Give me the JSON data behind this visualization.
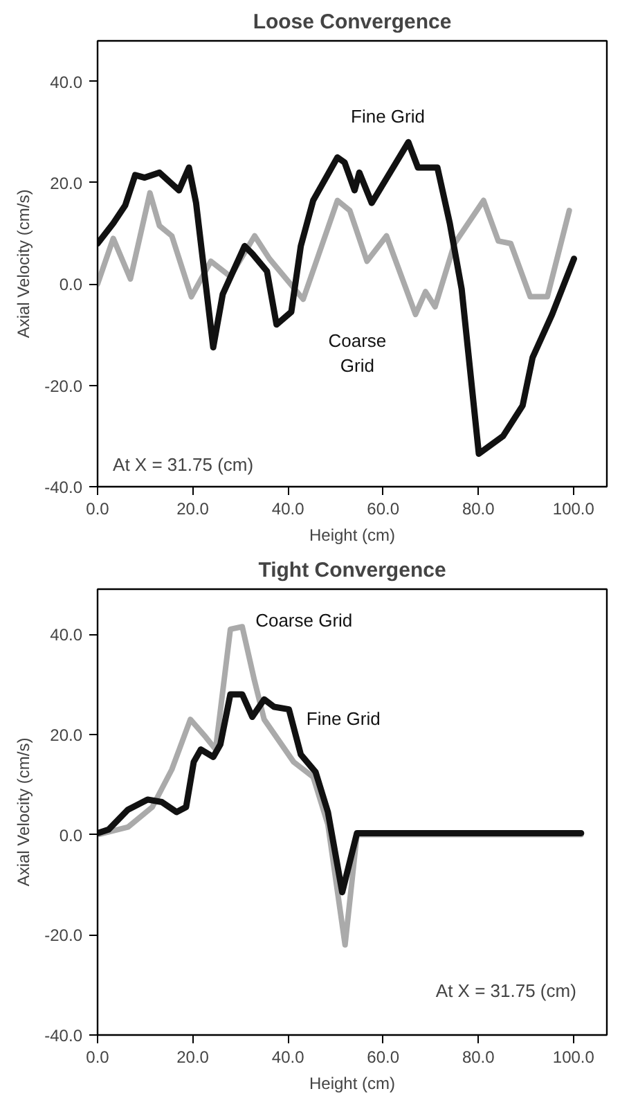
{
  "chart_data": [
    {
      "type": "line",
      "title": "Loose Convergence",
      "xlabel": "Height (cm)",
      "ylabel": "Axial Velocity (cm/s)",
      "annotations": [
        "At X = 31.75 (cm)"
      ],
      "xlim": [
        0,
        107
      ],
      "ylim": [
        -40,
        48
      ],
      "xticks": [
        {
          "value": 0,
          "label": "0.0"
        },
        {
          "value": 20,
          "label": "20.0"
        },
        {
          "value": 40,
          "label": "40.0"
        },
        {
          "value": 60,
          "label": "60.0"
        },
        {
          "value": 80,
          "label": "80.0"
        },
        {
          "value": 100,
          "label": "100.0"
        }
      ],
      "yticks": [
        {
          "value": -40,
          "label": "-40.0"
        },
        {
          "value": -20,
          "label": "-20.0"
        },
        {
          "value": 0,
          "label": "0.0"
        },
        {
          "value": 20,
          "label": "20.0"
        },
        {
          "value": 40,
          "label": "40.0"
        }
      ],
      "grid": false,
      "legend": false,
      "series": [
        {
          "name": "Coarse Grid",
          "color": "#aaaaaa",
          "x": [
            0,
            3.3,
            6.9,
            11,
            13,
            15.6,
            19.7,
            23.8,
            27.9,
            33,
            36.1,
            43.2,
            50.4,
            53,
            56.6,
            60.7,
            66.8,
            68.9,
            70.9,
            75,
            81.1,
            84.2,
            86.8,
            90.9,
            94.5,
            99.1
          ],
          "values": [
            0,
            9,
            1,
            18,
            11.5,
            9.5,
            -2.5,
            4.5,
            1.5,
            9.5,
            5,
            -3,
            16.5,
            14.5,
            4.5,
            9.5,
            -6,
            -1.5,
            -4.5,
            8,
            16.5,
            8.5,
            8,
            -2.5,
            -2.5,
            14.5
          ]
        },
        {
          "name": "Fine Grid",
          "color": "#111111",
          "x": [
            0,
            3.3,
            5.8,
            7.9,
            9.9,
            13,
            17.1,
            19.2,
            20.7,
            24.3,
            26.3,
            30.9,
            32.5,
            35.6,
            37.6,
            40.7,
            42.7,
            45.3,
            50.4,
            51.9,
            54,
            55,
            57.6,
            65.3,
            67.3,
            71.4,
            74,
            76.5,
            80.1,
            85.2,
            89.3,
            91.4,
            95.5,
            100.1
          ],
          "values": [
            8,
            12,
            15.5,
            21.5,
            21,
            22,
            18.5,
            23,
            16,
            -12.5,
            -2,
            7.5,
            6,
            2.5,
            -8,
            -5.5,
            7.5,
            16.5,
            25,
            24,
            18.5,
            22,
            16,
            28,
            23,
            23,
            12,
            -1,
            -33.5,
            -30,
            -24,
            -14.5,
            -6,
            5
          ]
        }
      ]
    },
    {
      "type": "line",
      "title": "Tight Convergence",
      "xlabel": "Height (cm)",
      "ylabel": "Axial Velocity (cm/s)",
      "annotations": [
        "At X = 31.75 (cm)"
      ],
      "xlim": [
        0,
        107
      ],
      "ylim": [
        -40,
        49
      ],
      "xticks": [
        {
          "value": 0,
          "label": "0.0"
        },
        {
          "value": 20,
          "label": "20.0"
        },
        {
          "value": 40,
          "label": "40.0"
        },
        {
          "value": 60,
          "label": "60.0"
        },
        {
          "value": 80,
          "label": "80.0"
        },
        {
          "value": 100,
          "label": "100.0"
        }
      ],
      "yticks": [
        {
          "value": -40,
          "label": "-40.0"
        },
        {
          "value": -20,
          "label": "-20.0"
        },
        {
          "value": 0,
          "label": "0.0"
        },
        {
          "value": 20,
          "label": "20.0"
        },
        {
          "value": 40,
          "label": "40.0"
        }
      ],
      "grid": false,
      "legend": false,
      "series": [
        {
          "name": "Coarse Grid",
          "color": "#aaaaaa",
          "x": [
            0,
            6.4,
            11.5,
            15.6,
            19.5,
            22.7,
            24.8,
            27.9,
            30.4,
            32.9,
            35,
            41.2,
            45.3,
            48.4,
            52,
            54.5,
            101.6
          ],
          "values": [
            0,
            1.5,
            5.5,
            13,
            23,
            19.5,
            17,
            41,
            41.5,
            31,
            23,
            14.5,
            11.5,
            2,
            -22,
            0,
            0
          ]
        },
        {
          "name": "Fine Grid",
          "color": "#111111",
          "x": [
            0,
            2.3,
            6.4,
            10.5,
            13.5,
            16.6,
            18.6,
            20.2,
            21.7,
            24.3,
            25.8,
            27.9,
            30.4,
            32.5,
            35,
            37.1,
            40.2,
            42.7,
            45.8,
            48.4,
            51.4,
            54.5,
            101.6
          ],
          "values": [
            0.3,
            1,
            5,
            7,
            6.5,
            4.5,
            5.5,
            14.5,
            17,
            15.5,
            18,
            28,
            28,
            23.5,
            27,
            25.5,
            25,
            16,
            12.5,
            4.5,
            -11.5,
            0.3,
            0.3
          ]
        }
      ]
    }
  ]
}
